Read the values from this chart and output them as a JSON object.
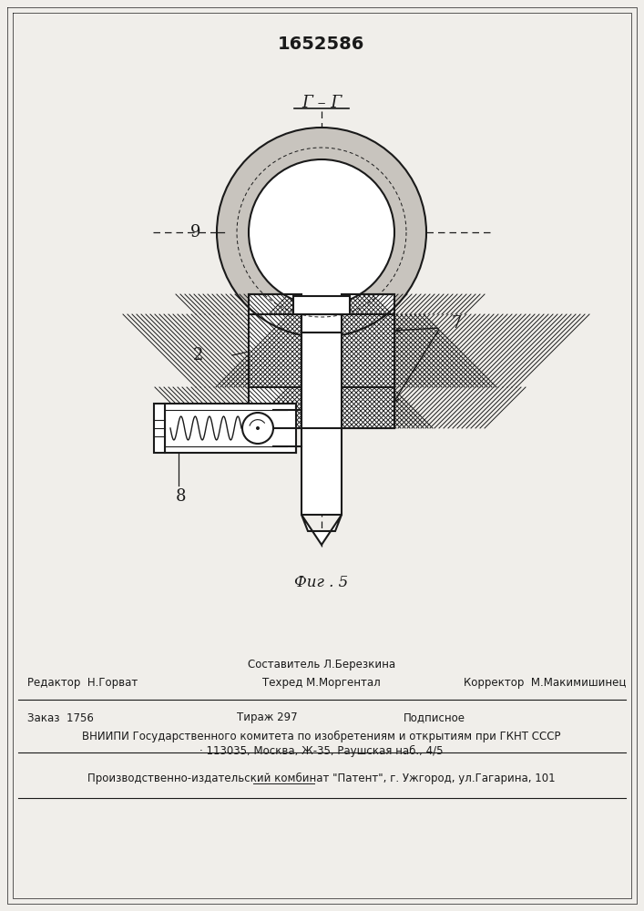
{
  "title": "1652586",
  "fig_label": "Фиг . 5",
  "section_label": "Г – Г",
  "label_9": "9",
  "label_2": "2",
  "label_7": "7",
  "label_8": "8",
  "footer_line1_left": "Редактор  Н.Горват",
  "footer_line1_center_top": "Составитель Л.Березкина",
  "footer_line1_center_bot": "Техред М.Моргентал",
  "footer_line1_right": "Корректор  М.Макимишинец",
  "footer_line2_left": "Заказ  1756",
  "footer_line2_center": "Тираж 297",
  "footer_line2_right": "Подписное",
  "footer_line3": "ВНИИПИ Государственного комитета по изобретениям и открытиям при ГКНТ СССР",
  "footer_line4": "· 113035, Москва, Ж-35, Раушская наб., 4/5",
  "footer_line5": "Производственно-издательский комбинат \"Патент\", г. Ужгород, ул.Гагарина, 101",
  "bg_color": "#f0eeea",
  "line_color": "#1a1a1a"
}
